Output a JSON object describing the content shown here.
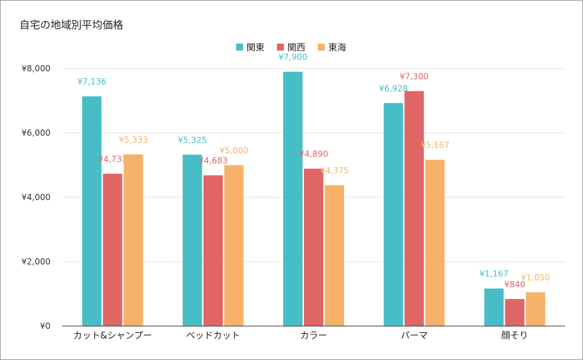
{
  "chart_data": {
    "type": "bar",
    "title": "自宅の地域別平均価格",
    "categories": [
      "カット&シャンプー",
      "ベッドカット",
      "カラー",
      "パーマ",
      "顔そり"
    ],
    "series": [
      {
        "name": "関東",
        "color": "#47bec6",
        "values": [
          7136,
          5325,
          7900,
          6928,
          1167
        ],
        "labels": [
          "¥7,136",
          "¥5,325",
          "¥7,900",
          "¥6,928",
          "¥1,167"
        ]
      },
      {
        "name": "関西",
        "color": "#e06666",
        "values": [
          4733,
          4683,
          4890,
          7300,
          840
        ],
        "labels": [
          "¥4,733",
          "¥4,683",
          "¥4,890",
          "¥7,300",
          "¥840"
        ]
      },
      {
        "name": "東海",
        "color": "#f6b26b",
        "values": [
          5333,
          5000,
          4375,
          5167,
          1050
        ],
        "labels": [
          "¥5,333",
          "¥5,000",
          "¥4,375",
          "¥5,167",
          "¥1,050"
        ]
      }
    ],
    "ylim": [
      0,
      8000
    ],
    "yticks": [
      0,
      2000,
      4000,
      6000,
      8000
    ],
    "ytick_labels": [
      "¥0",
      "¥2,000",
      "¥4,000",
      "¥6,000",
      "¥8,000"
    ],
    "xlabel": "",
    "ylabel": "",
    "grid": true,
    "legend_position": "top"
  }
}
